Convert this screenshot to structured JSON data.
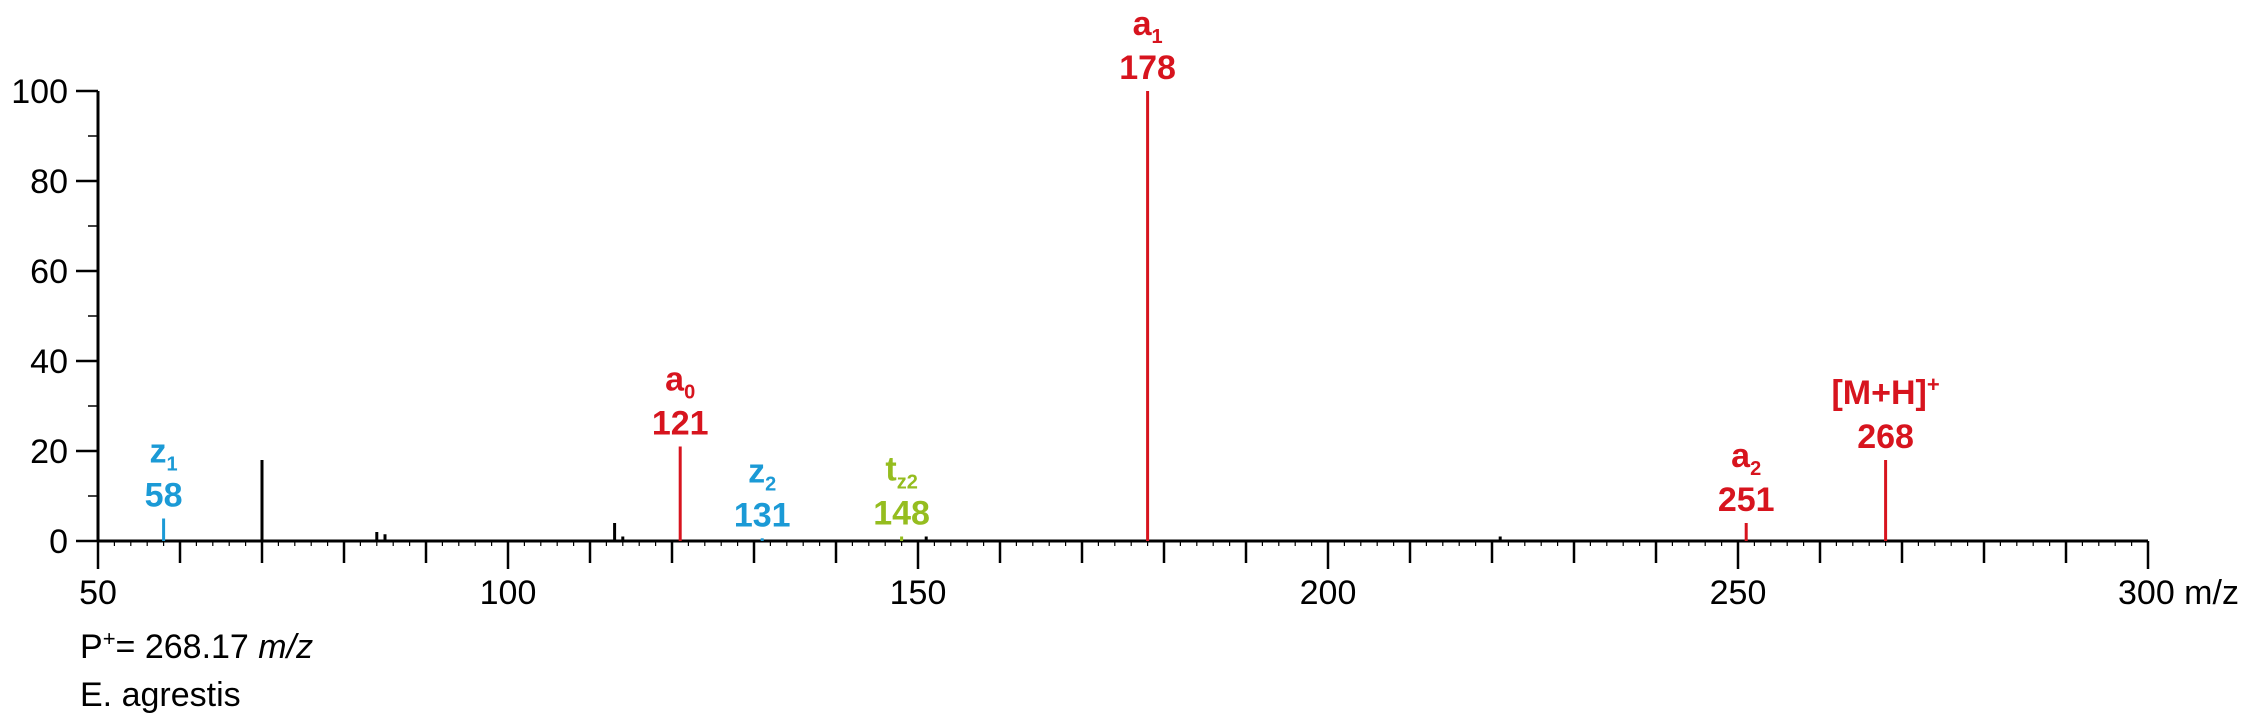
{
  "chart_data": {
    "type": "bar",
    "xlim": [
      50,
      300
    ],
    "ylim": [
      0,
      100
    ],
    "x_ticks": [
      50,
      100,
      150,
      200,
      250,
      300
    ],
    "x_unit": "m/z",
    "y_ticks": [
      0,
      20,
      40,
      60,
      80,
      100
    ],
    "grid": false,
    "colors": {
      "a": "#d7141e",
      "z": "#1b9ad6",
      "t": "#95bd1f",
      "other": "#000000"
    },
    "peaks": [
      {
        "x": 58,
        "y": 5,
        "ion": "z",
        "sub": "1",
        "label": "58",
        "color": "#1b9ad6"
      },
      {
        "x": 70,
        "y": 18,
        "color": "#000000"
      },
      {
        "x": 84,
        "y": 2,
        "color": "#000000"
      },
      {
        "x": 85,
        "y": 1.5,
        "color": "#000000"
      },
      {
        "x": 113,
        "y": 4,
        "color": "#000000"
      },
      {
        "x": 114,
        "y": 1,
        "color": "#000000"
      },
      {
        "x": 121,
        "y": 21,
        "ion": "a",
        "sub": "0",
        "label": "121",
        "color": "#d7141e"
      },
      {
        "x": 131,
        "y": 0.6,
        "ion": "z",
        "sub": "2",
        "label": "131",
        "color": "#1b9ad6"
      },
      {
        "x": 148,
        "y": 1,
        "ion": "t",
        "sub": "z2",
        "label": "148",
        "color": "#95bd1f"
      },
      {
        "x": 151,
        "y": 1,
        "color": "#000000"
      },
      {
        "x": 178,
        "y": 100,
        "ion": "a",
        "sub": "1",
        "label": "178",
        "color": "#d7141e"
      },
      {
        "x": 221,
        "y": 1,
        "color": "#000000"
      },
      {
        "x": 251,
        "y": 4,
        "ion": "a",
        "sub": "2",
        "label": "251",
        "color": "#d7141e"
      },
      {
        "x": 268,
        "y": 18,
        "ion": "[M+H]",
        "sup": "+",
        "label": "268",
        "color": "#d7141e"
      }
    ]
  },
  "footer": {
    "precursor_prefix": "P",
    "precursor_sup": "+",
    "precursor_value": "= 268.17 ",
    "precursor_unit": "m/z",
    "species": "E. agrestis"
  }
}
